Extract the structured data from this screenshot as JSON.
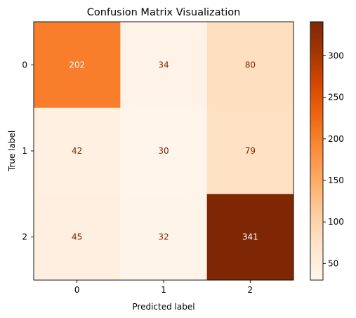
{
  "chart_data": {
    "type": "heatmap",
    "title": "Confusion Matrix Visualization",
    "xlabel": "Predicted label",
    "ylabel": "True label",
    "x_categories": [
      "0",
      "1",
      "2"
    ],
    "y_categories": [
      "0",
      "1",
      "2"
    ],
    "values": [
      [
        202,
        34,
        80
      ],
      [
        42,
        30,
        79
      ],
      [
        45,
        32,
        341
      ]
    ],
    "colormap": "Oranges",
    "colorbar": {
      "min": 30,
      "max": 341,
      "ticks": [
        50,
        100,
        150,
        200,
        250,
        300
      ],
      "tick_labels": [
        "50",
        "100",
        "150",
        "200",
        "250",
        "300"
      ]
    },
    "colors": {
      "text_dark_cell": "#ffffff",
      "text_light_cell": "#7f2704"
    }
  }
}
